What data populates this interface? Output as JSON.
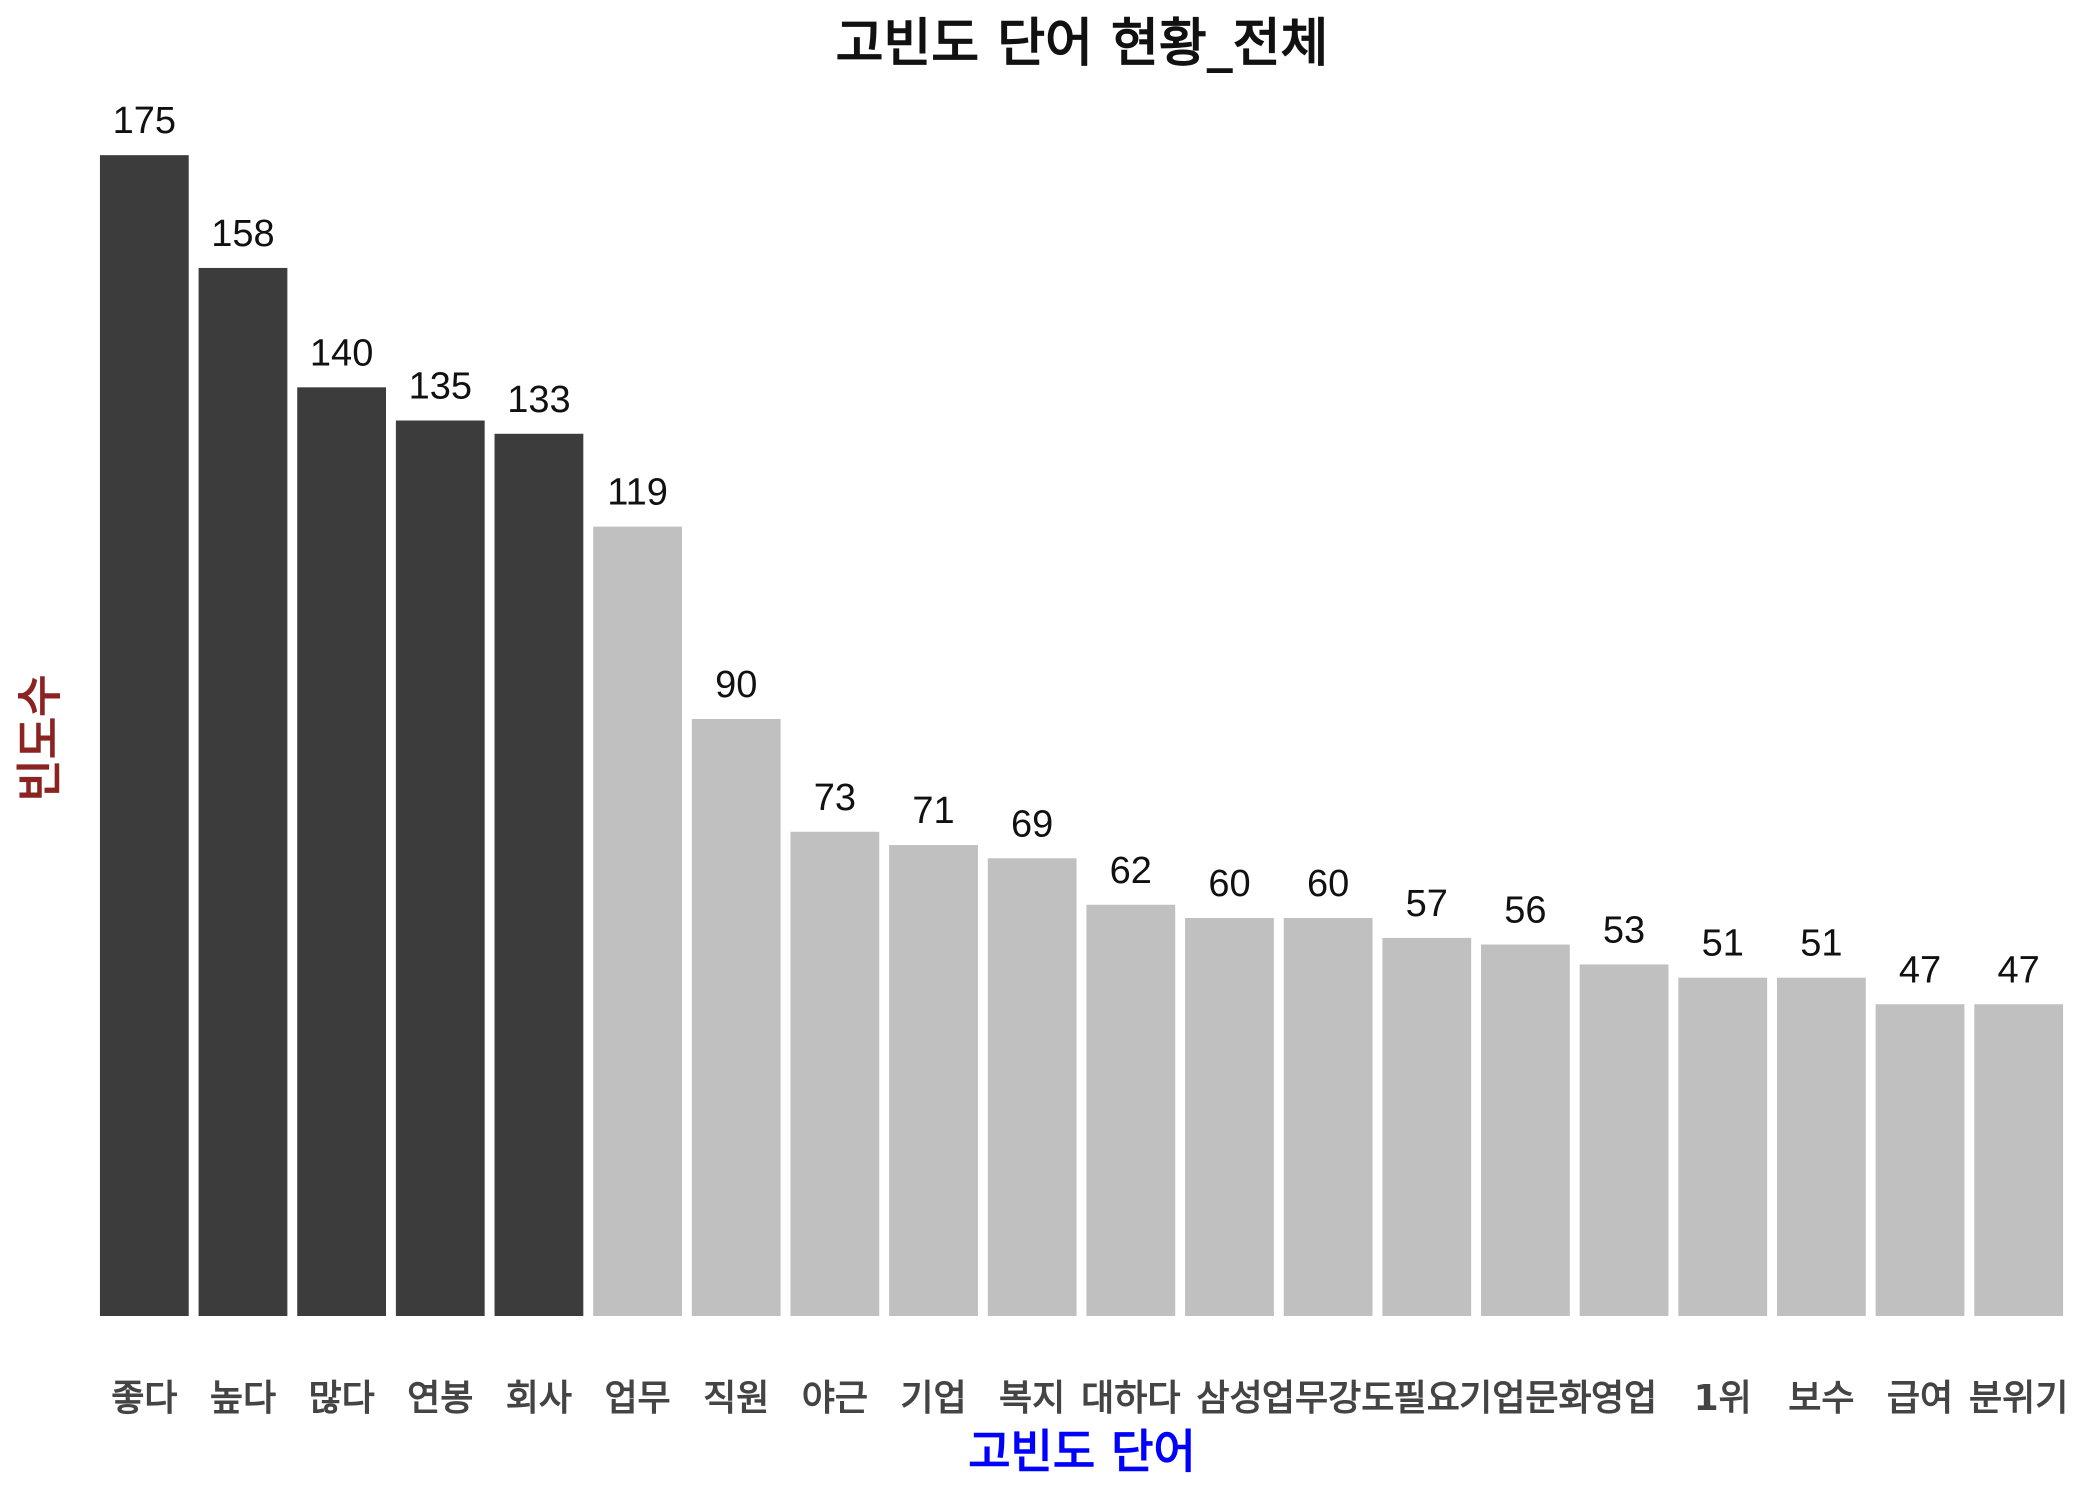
{
  "chart_data": {
    "type": "bar",
    "title": "고빈도 단어 현황_전체",
    "x_label": "고빈도 단어",
    "y_label": "빈도수",
    "categories": [
      "좋다",
      "높다",
      "많다",
      "연봉",
      "회사",
      "업무",
      "직원",
      "야근",
      "기업",
      "복지",
      "대하다",
      "삼성",
      "업무강도",
      "필요",
      "기업문화",
      "영업",
      "1위",
      "보수",
      "급여",
      "분위기"
    ],
    "values": [
      175,
      158,
      140,
      135,
      133,
      119,
      90,
      73,
      71,
      69,
      62,
      60,
      60,
      57,
      56,
      53,
      51,
      51,
      47,
      47
    ],
    "colors": [
      "#3c3c3c",
      "#3c3c3c",
      "#3c3c3c",
      "#3c3c3c",
      "#3c3c3c",
      "#c0c0c0",
      "#c0c0c0",
      "#c0c0c0",
      "#c0c0c0",
      "#c0c0c0",
      "#c0c0c0",
      "#c0c0c0",
      "#c0c0c0",
      "#c0c0c0",
      "#c0c0c0",
      "#c0c0c0",
      "#c0c0c0",
      "#c0c0c0",
      "#c0c0c0",
      "#c0c0c0"
    ],
    "ylim": [
      0,
      180
    ],
    "grid": false,
    "show_value_labels": true
  }
}
